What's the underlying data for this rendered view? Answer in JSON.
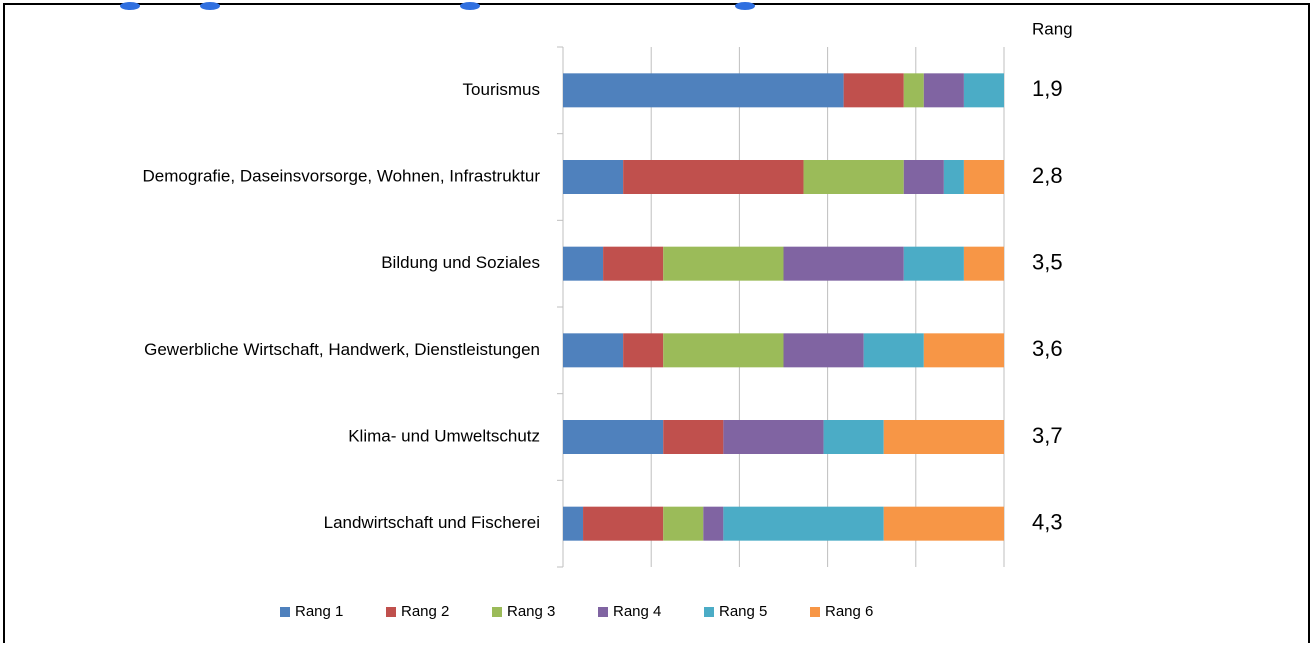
{
  "chart_data": {
    "type": "stacked_barh",
    "categories": [
      "Tourismus",
      "Demografie, Daseinsvorsorge, Wohnen, Infrastruktur",
      "Bildung und Soziales",
      "Gewerbliche Wirtschaft, Handwerk, Dienstleistungen",
      "Klima- und Umweltschutz",
      "Landwirtschaft und Fischerei"
    ],
    "series": [
      {
        "name": "Rang 1",
        "color": "#4f81bd",
        "values": [
          14,
          3,
          2,
          3,
          5,
          1
        ]
      },
      {
        "name": "Rang 2",
        "color": "#c0504d",
        "values": [
          3,
          9,
          3,
          2,
          3,
          4
        ]
      },
      {
        "name": "Rang 3",
        "color": "#9bbb59",
        "values": [
          1,
          5,
          6,
          6,
          0,
          2
        ]
      },
      {
        "name": "Rang 4",
        "color": "#8064a2",
        "values": [
          2,
          2,
          6,
          4,
          5,
          1
        ]
      },
      {
        "name": "Rang 5",
        "color": "#4bacc6",
        "values": [
          2,
          1,
          3,
          3,
          3,
          8
        ]
      },
      {
        "name": "Rang 6",
        "color": "#f79646",
        "values": [
          0,
          2,
          2,
          4,
          6,
          6
        ]
      }
    ],
    "xlim": [
      0,
      22
    ],
    "xticks": [
      0,
      4.4,
      8.8,
      13.2,
      17.6,
      22
    ],
    "grid": true,
    "rank_header": "Rang",
    "rank_labels": [
      "1,9",
      "2,8",
      "3,5",
      "3,6",
      "3,7",
      "4,3"
    ],
    "legend": "bottom"
  }
}
